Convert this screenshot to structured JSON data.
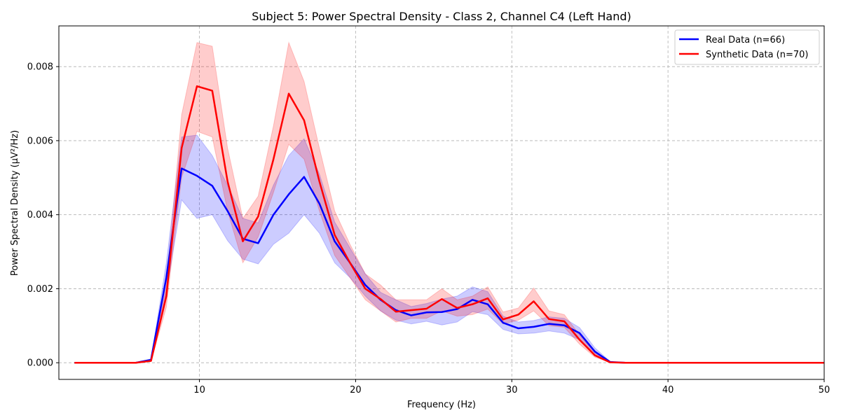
{
  "chart_data": {
    "type": "line",
    "title": "Subject 5: Power Spectral Density - Class 2, Channel C4 (Left Hand)",
    "xlabel": "Frequency (Hz)",
    "ylabel": "Power Spectral Density (µV²/Hz)",
    "xlim": [
      1,
      50
    ],
    "ylim": [
      -0.00045,
      0.0091
    ],
    "xticks": [
      10,
      20,
      30,
      40,
      50
    ],
    "xtick_labels": [
      "10",
      "20",
      "30",
      "40",
      "50"
    ],
    "yticks": [
      0,
      0.002,
      0.004,
      0.006,
      0.008
    ],
    "ytick_labels": [
      "0.000",
      "0.002",
      "0.004",
      "0.006",
      "0.008"
    ],
    "grid": true,
    "legend_position": "top-right",
    "x": [
      2,
      2.98,
      3.96,
      4.94,
      5.92,
      6.9,
      7.88,
      8.86,
      9.84,
      10.82,
      11.8,
      12.78,
      13.76,
      14.74,
      15.72,
      16.7,
      17.68,
      18.66,
      19.64,
      20.62,
      21.6,
      22.58,
      23.56,
      24.54,
      25.52,
      26.5,
      27.48,
      28.46,
      29.44,
      30.42,
      31.4,
      32.38,
      33.36,
      34.34,
      35.32,
      36.3,
      37.28,
      38.26,
      39.24,
      40.22,
      41.2,
      42.18,
      43.16,
      44.14,
      45.12,
      46.1,
      47.08,
      48.06,
      49.04,
      50
    ],
    "series": [
      {
        "name": "Real Data (n=66)",
        "color": "#0000ff",
        "values": [
          0,
          0,
          0,
          0,
          0,
          8e-05,
          0.0023,
          0.00525,
          0.00505,
          0.00478,
          0.0041,
          0.00335,
          0.00323,
          0.004,
          0.00455,
          0.00502,
          0.0043,
          0.00328,
          0.0027,
          0.0021,
          0.0017,
          0.00142,
          0.00128,
          0.00136,
          0.00137,
          0.00145,
          0.0017,
          0.00158,
          0.00108,
          0.00093,
          0.00097,
          0.00105,
          0.00101,
          0.0008,
          0.0003,
          2e-05,
          0,
          0,
          0,
          0,
          0,
          0,
          0,
          0,
          0,
          0,
          0,
          0,
          0,
          0
        ],
        "lower": [
          0,
          0,
          0,
          0,
          0,
          5e-05,
          0.0019,
          0.0044,
          0.0039,
          0.004,
          0.0033,
          0.0028,
          0.00267,
          0.0032,
          0.0035,
          0.004,
          0.0035,
          0.0027,
          0.0023,
          0.0018,
          0.0014,
          0.00115,
          0.00105,
          0.00112,
          0.00102,
          0.0011,
          0.00138,
          0.0013,
          0.0009,
          0.00078,
          0.0008,
          0.00086,
          0.0008,
          0.00062,
          0.0002,
          1e-05,
          0,
          0,
          0,
          0,
          0,
          0,
          0,
          0,
          0,
          0,
          0,
          0,
          0,
          0
        ],
        "upper": [
          0,
          0,
          0,
          0,
          0,
          0.0001,
          0.0027,
          0.0061,
          0.00615,
          0.0056,
          0.0048,
          0.0039,
          0.00378,
          0.0048,
          0.0056,
          0.00605,
          0.0051,
          0.0038,
          0.0031,
          0.0024,
          0.0019,
          0.0017,
          0.00152,
          0.0016,
          0.00172,
          0.0018,
          0.00205,
          0.00192,
          0.00126,
          0.0011,
          0.00114,
          0.00124,
          0.0012,
          0.00095,
          0.0004,
          3e-05,
          0,
          0,
          0,
          0,
          0,
          0,
          0,
          0,
          0,
          0,
          0,
          0,
          0,
          0
        ]
      },
      {
        "name": "Synthetic Data (n=70)",
        "color": "#ff0000",
        "values": [
          0,
          0,
          0,
          0,
          0,
          5e-05,
          0.0018,
          0.0058,
          0.00747,
          0.00735,
          0.0049,
          0.00328,
          0.00395,
          0.0055,
          0.00727,
          0.00655,
          0.0049,
          0.00345,
          0.0027,
          0.002,
          0.00172,
          0.00138,
          0.00142,
          0.00146,
          0.00172,
          0.00148,
          0.00158,
          0.00174,
          0.00117,
          0.0013,
          0.00166,
          0.00118,
          0.00112,
          0.00062,
          0.0002,
          1e-05,
          0,
          0,
          0,
          0,
          0,
          0,
          0,
          0,
          0,
          0,
          0,
          0,
          0,
          0
        ],
        "lower": [
          0,
          0,
          0,
          0,
          0,
          3e-05,
          0.0015,
          0.005,
          0.00625,
          0.0061,
          0.0041,
          0.0027,
          0.0034,
          0.0046,
          0.0059,
          0.0055,
          0.0041,
          0.0029,
          0.0023,
          0.0017,
          0.0014,
          0.0011,
          0.0012,
          0.0012,
          0.0014,
          0.00126,
          0.0013,
          0.00145,
          0.00105,
          0.00115,
          0.0014,
          0.001,
          0.00096,
          0.0005,
          0.00015,
          1e-05,
          0,
          0,
          0,
          0,
          0,
          0,
          0,
          0,
          0,
          0,
          0,
          0,
          0,
          0
        ],
        "upper": [
          0,
          0,
          0,
          0,
          0,
          8e-05,
          0.0021,
          0.0067,
          0.00865,
          0.00855,
          0.0058,
          0.0039,
          0.0045,
          0.0064,
          0.00865,
          0.0076,
          0.0058,
          0.0041,
          0.0032,
          0.0024,
          0.0021,
          0.0017,
          0.0017,
          0.0017,
          0.002,
          0.0017,
          0.0018,
          0.00205,
          0.00137,
          0.00148,
          0.00202,
          0.0014,
          0.0013,
          0.00075,
          0.00026,
          2e-05,
          0,
          0,
          0,
          0,
          0,
          0,
          0,
          0,
          0,
          0,
          0,
          0,
          0,
          0
        ]
      }
    ]
  }
}
